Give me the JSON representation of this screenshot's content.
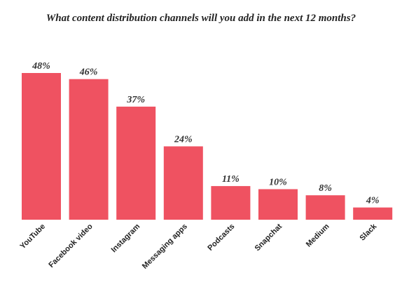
{
  "chart_data": {
    "type": "bar",
    "title": "What content distribution channels will you add in the next 12 months?",
    "categories": [
      "YouTube",
      "Facebook video",
      "Instagram",
      "Messaging apps",
      "Podcasts",
      "Snapchat",
      "Medium",
      "Slack"
    ],
    "values": [
      48,
      46,
      37,
      24,
      11,
      10,
      8,
      4
    ],
    "value_labels": [
      "48%",
      "46%",
      "37%",
      "24%",
      "11%",
      "10%",
      "8%",
      "4%"
    ],
    "unit": "%",
    "ylim": [
      0,
      48
    ],
    "bar_color": "#ef5261",
    "xlabel": "",
    "ylabel": "",
    "grid": false,
    "legend": "none"
  }
}
